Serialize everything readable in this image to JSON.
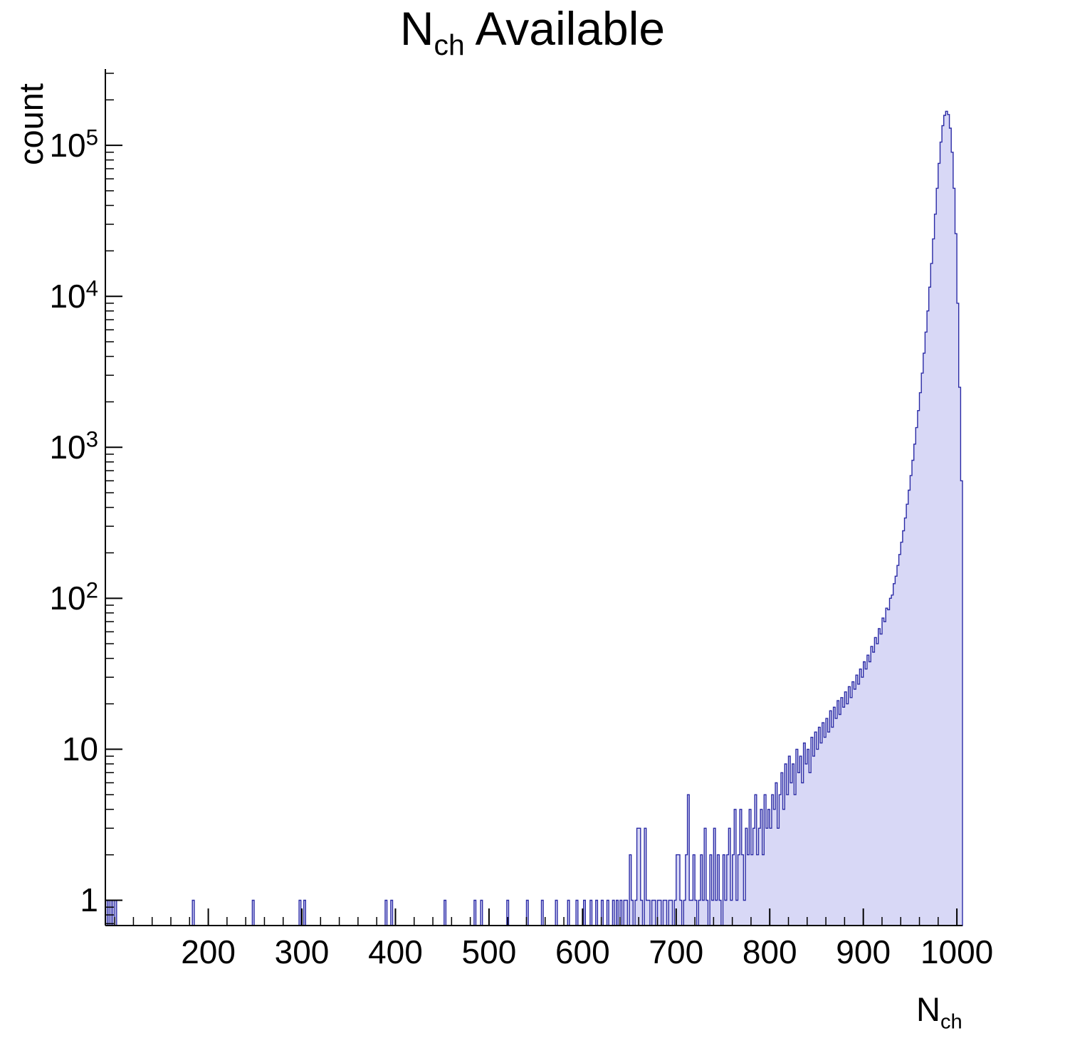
{
  "title": {
    "main": "N",
    "sub": "ch",
    "rest": " Available"
  },
  "axes": {
    "x": {
      "label_main": "N",
      "label_sub": "ch",
      "min": 90,
      "max": 1006,
      "ticks": [
        200,
        300,
        400,
        500,
        600,
        700,
        800,
        900,
        1000
      ],
      "minor_step": 20
    },
    "y": {
      "label": "count",
      "scale": "log",
      "min": 0.68,
      "max": 320000,
      "ticks": [
        {
          "label": "1",
          "value": 1
        },
        {
          "label": "10",
          "value": 10
        },
        {
          "base": "10",
          "exp": "2",
          "value": 100
        },
        {
          "base": "10",
          "exp": "3",
          "value": 1000
        },
        {
          "base": "10",
          "exp": "4",
          "value": 10000
        },
        {
          "base": "10",
          "exp": "5",
          "value": 100000
        }
      ]
    }
  },
  "style": {
    "fill": "#d8d8f6",
    "line": "#2a2aa5",
    "frame": "#000000",
    "text": "#000000",
    "background": "#ffffff"
  },
  "chart_data": {
    "type": "bar",
    "title": "N_ch Available",
    "xlabel": "N_ch",
    "ylabel": "count",
    "x_range": [
      90,
      1006
    ],
    "y_range": [
      0.68,
      320000
    ],
    "y_scale": "log",
    "grid": false,
    "legend": false,
    "peak": {
      "x": 988,
      "count": 168000
    },
    "bin_width": 2,
    "sparse_bins": [
      [
        92,
        1
      ],
      [
        96,
        1
      ],
      [
        100,
        1
      ],
      [
        183,
        1
      ],
      [
        247,
        1
      ],
      [
        297,
        1
      ],
      [
        302,
        1
      ],
      [
        389,
        1
      ],
      [
        395,
        1
      ],
      [
        452,
        1
      ],
      [
        484,
        1
      ],
      [
        491,
        1
      ],
      [
        519,
        1
      ],
      [
        540,
        1
      ],
      [
        556,
        1
      ],
      [
        571,
        1
      ],
      [
        584,
        1
      ],
      [
        593,
        1
      ],
      [
        601,
        1
      ],
      [
        608,
        1
      ],
      [
        614,
        1
      ],
      [
        620,
        1
      ],
      [
        626,
        1
      ],
      [
        632,
        1
      ],
      [
        636,
        1
      ]
    ],
    "dense_bins": {
      "start": 640,
      "step": 2,
      "counts": [
        1,
        0,
        1,
        1,
        0,
        2,
        1,
        0,
        1,
        3,
        3,
        1,
        0,
        3,
        1,
        1,
        0,
        1,
        1,
        0,
        1,
        1,
        0,
        1,
        1,
        0,
        1,
        1,
        0,
        1,
        2,
        2,
        1,
        0,
        1,
        2,
        5,
        1,
        1,
        2,
        1,
        0,
        1,
        2,
        1,
        3,
        1,
        0,
        2,
        1,
        3,
        1,
        2,
        1,
        0,
        2,
        1,
        2,
        3,
        1,
        2,
        4,
        1,
        2,
        4,
        2,
        1,
        3,
        2,
        4,
        2,
        3,
        5,
        2,
        3,
        4,
        2,
        5,
        3,
        4,
        3,
        5,
        4,
        6,
        3,
        5,
        7,
        4,
        8,
        5,
        9,
        6,
        8,
        5,
        10,
        7,
        9,
        6,
        11,
        8,
        10,
        7,
        12,
        9,
        13,
        10,
        14,
        11,
        15,
        12,
        16,
        13,
        18,
        14,
        19,
        16,
        21,
        17,
        22,
        19,
        24,
        20,
        26,
        22,
        28,
        25,
        31,
        27,
        34,
        30,
        38,
        34,
        42,
        38,
        48,
        44,
        55,
        50,
        63,
        58,
        74,
        70,
        86,
        84,
        100,
        105,
        125,
        140,
        165,
        195,
        235,
        280,
        340,
        420,
        520,
        650,
        820,
        1050,
        1350,
        1750,
        2300,
        3100,
        4200,
        5800,
        8000,
        11500,
        16500,
        24000,
        35000,
        52000,
        76000,
        105000,
        135000,
        158000,
        168000,
        160000,
        130000,
        90000,
        52000,
        26000,
        9000,
        2500,
        600
      ]
    }
  }
}
